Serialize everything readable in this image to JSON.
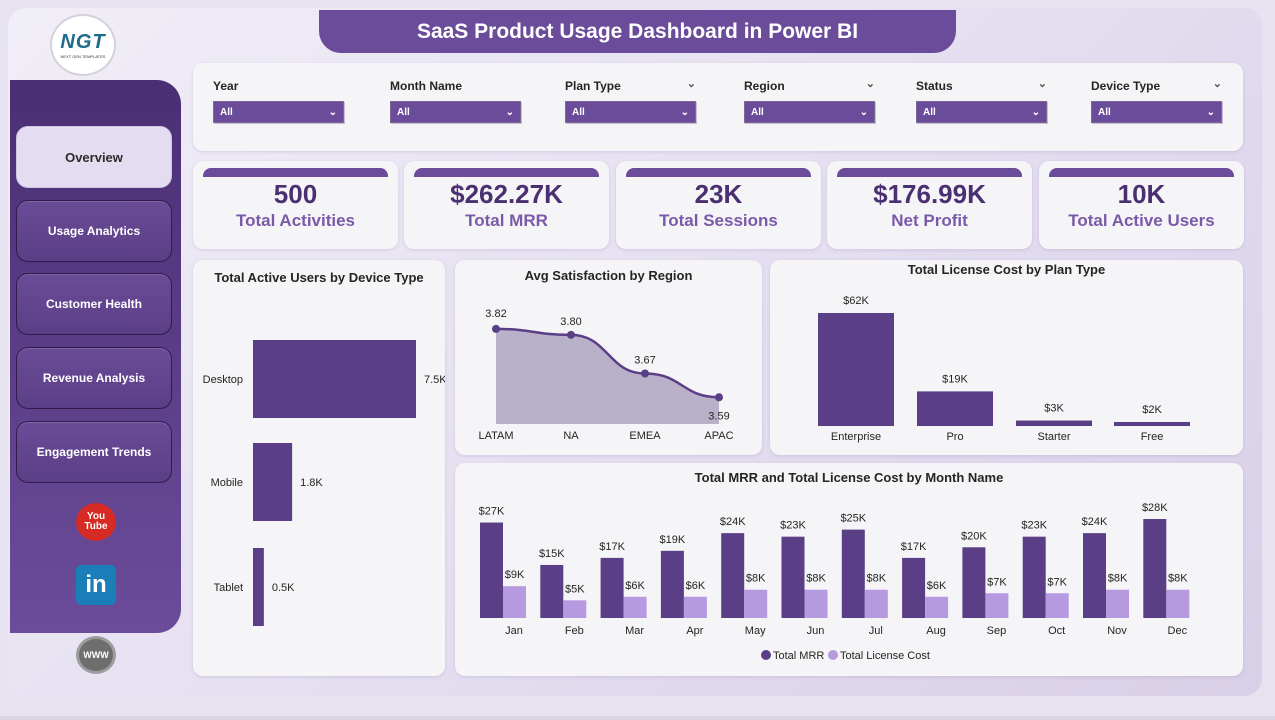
{
  "title": "SaaS Product Usage Dashboard in Power BI",
  "logo": {
    "mark": "NGT",
    "sub": "NEXT GEN TEMPLATES"
  },
  "nav": [
    {
      "label": "Overview",
      "active": true
    },
    {
      "label": "Usage Analytics",
      "active": false
    },
    {
      "label": "Customer Health",
      "active": false
    },
    {
      "label": "Revenue Analysis",
      "active": false
    },
    {
      "label": "Engagement Trends",
      "active": false
    }
  ],
  "social": {
    "youtube_icon": "youtube-icon",
    "youtube_text_1": "You",
    "youtube_text_2": "Tube",
    "linkedin_icon": "linkedin-icon",
    "linkedin_text": "in",
    "web_icon": "globe-icon",
    "web_text": "WWW"
  },
  "slicers": [
    {
      "label": "Year",
      "value": "All",
      "has_header_chevron": false
    },
    {
      "label": "Month Name",
      "value": "All",
      "has_header_chevron": false
    },
    {
      "label": "Plan Type",
      "value": "All",
      "has_header_chevron": true
    },
    {
      "label": "Region",
      "value": "All",
      "has_header_chevron": true
    },
    {
      "label": "Status",
      "value": "All",
      "has_header_chevron": true
    },
    {
      "label": "Device Type",
      "value": "All",
      "has_header_chevron": true
    }
  ],
  "kpis": [
    {
      "value": "500",
      "caption": "Total Activities"
    },
    {
      "value": "$262.27K",
      "caption": "Total MRR"
    },
    {
      "value": "23K",
      "caption": "Total Sessions"
    },
    {
      "value": "$176.99K",
      "caption": "Net Profit"
    },
    {
      "value": "10K",
      "caption": "Total Active Users"
    }
  ],
  "colors": {
    "primary": "#6b4c9a",
    "bar_dark": "#5b3f86",
    "bar_light": "#b59ae0",
    "area_fill": "#b3a9c4",
    "line": "#5b3f86"
  },
  "chart_data": [
    {
      "type": "bar",
      "orientation": "horizontal",
      "title": "Total Active Users by Device Type",
      "categories": [
        "Desktop",
        "Mobile",
        "Tablet"
      ],
      "values": [
        7500,
        1800,
        500
      ],
      "labels": [
        "7.5K",
        "1.8K",
        "0.5K"
      ]
    },
    {
      "type": "area",
      "title": "Avg Satisfaction by Region",
      "categories": [
        "LATAM",
        "NA",
        "EMEA",
        "APAC"
      ],
      "values": [
        3.82,
        3.8,
        3.67,
        3.59
      ],
      "labels": [
        "3.82",
        "3.80",
        "3.67",
        "3.59"
      ]
    },
    {
      "type": "bar",
      "title": "Total License Cost by Plan Type",
      "categories": [
        "Enterprise",
        "Pro",
        "Starter",
        "Free"
      ],
      "values": [
        62000,
        19000,
        3000,
        2000
      ],
      "labels": [
        "$62K",
        "$19K",
        "$3K",
        "$2K"
      ]
    },
    {
      "type": "bar",
      "title": "Total MRR and Total License Cost by Month Name",
      "categories": [
        "Jan",
        "Feb",
        "Mar",
        "Apr",
        "May",
        "Jun",
        "Jul",
        "Aug",
        "Sep",
        "Oct",
        "Nov",
        "Dec"
      ],
      "series": [
        {
          "name": "Total MRR",
          "values": [
            27000,
            15000,
            17000,
            19000,
            24000,
            23000,
            25000,
            17000,
            20000,
            23000,
            24000,
            28000
          ],
          "labels": [
            "$27K",
            "$15K",
            "$17K",
            "$19K",
            "$24K",
            "$23K",
            "$25K",
            "$17K",
            "$20K",
            "$23K",
            "$24K",
            "$28K"
          ]
        },
        {
          "name": "Total License Cost",
          "values": [
            9000,
            5000,
            6000,
            6000,
            8000,
            8000,
            8000,
            6000,
            7000,
            7000,
            8000,
            8000
          ],
          "labels": [
            "$9K",
            "$5K",
            "$6K",
            "$6K",
            "$8K",
            "$8K",
            "$8K",
            "$6K",
            "$7K",
            "$7K",
            "$8K",
            "$8K"
          ]
        }
      ],
      "legend": "bottom"
    }
  ]
}
